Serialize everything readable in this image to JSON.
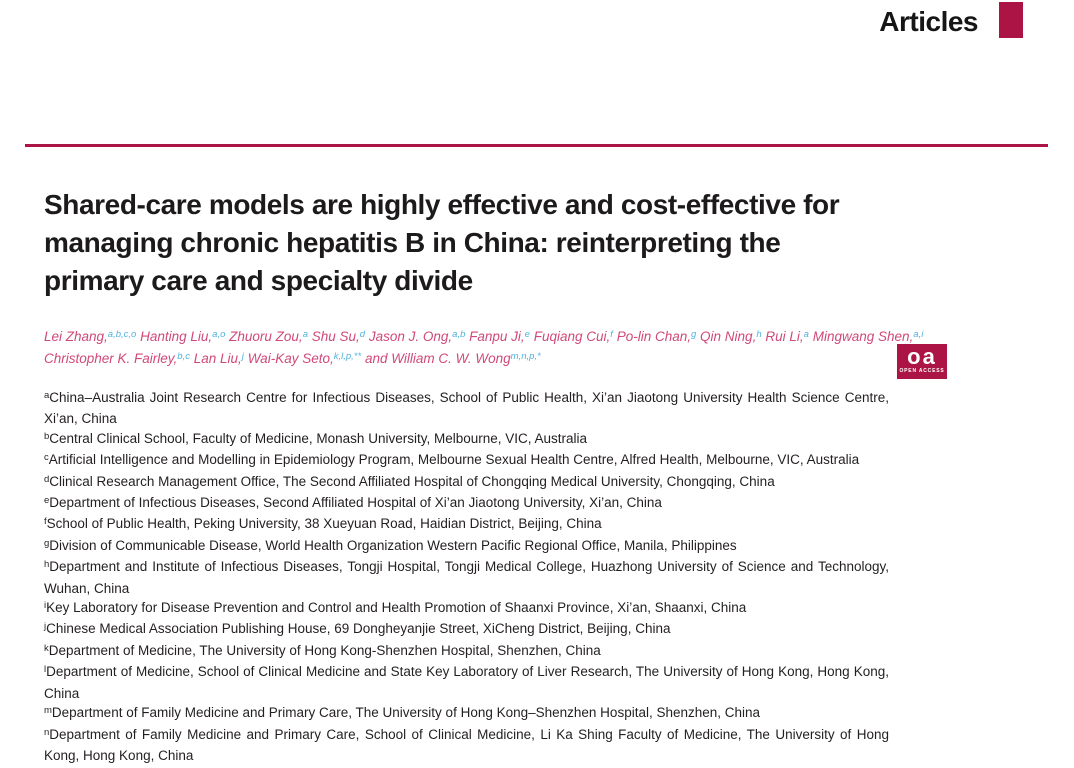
{
  "header": {
    "section_label": "Articles"
  },
  "colors": {
    "crimson": "#AC1445",
    "author_pink": "#D0497A",
    "superscript_blue": "#4FB3E0",
    "text_black": "#231F20"
  },
  "title": {
    "lines": [
      "Shared-care models are highly effective and cost-effective for",
      "managing chronic hepatitis B in China: reinterpreting the",
      "primary care and specialty divide"
    ]
  },
  "authors": {
    "line1": [
      {
        "name": "Lei Zhang,",
        "sup": "a,b,c,o"
      },
      {
        "name": "Hanting Liu,",
        "sup": "a,o"
      },
      {
        "name": "Zhuoru Zou,",
        "sup": "a"
      },
      {
        "name": "Shu Su,",
        "sup": "d"
      },
      {
        "name": "Jason J. Ong,",
        "sup": "a,b"
      },
      {
        "name": "Fanpu Ji,",
        "sup": "e"
      },
      {
        "name": "Fuqiang Cui,",
        "sup": "f"
      },
      {
        "name": "Po-lin Chan,",
        "sup": "g"
      },
      {
        "name": "Qin Ning,",
        "sup": "h"
      },
      {
        "name": "Rui Li,",
        "sup": "a"
      },
      {
        "name": "Mingwang Shen,",
        "sup": "a,i"
      }
    ],
    "line2": [
      {
        "name": "Christopher K. Fairley,",
        "sup": "b,c"
      },
      {
        "name": "Lan Liu,",
        "sup": "j"
      },
      {
        "name": "Wai-Kay Seto,",
        "sup": "k,l,p,**"
      },
      {
        "name": "and William C. W. Wong",
        "sup": "m,n,p,*"
      }
    ]
  },
  "open_access": {
    "abbr": "oa",
    "label": "OPEN ACCESS"
  },
  "affiliations": [
    {
      "letter": "a",
      "text": "China–Australia Joint Research Centre for Infectious Diseases, School of Public Health, Xi’an Jiaotong University Health Science Centre, Xi’an, China"
    },
    {
      "letter": "b",
      "text": "Central Clinical School, Faculty of Medicine, Monash University, Melbourne, VIC, Australia"
    },
    {
      "letter": "c",
      "text": "Artificial Intelligence and Modelling in Epidemiology Program, Melbourne Sexual Health Centre, Alfred Health, Melbourne, VIC, Australia"
    },
    {
      "letter": "d",
      "text": "Clinical Research Management Office, The Second Affiliated Hospital of Chongqing Medical University, Chongqing, China"
    },
    {
      "letter": "e",
      "text": "Department of Infectious Diseases, Second Affiliated Hospital of Xi’an Jiaotong University, Xi’an, China"
    },
    {
      "letter": "f",
      "text": "School of Public Health, Peking University, 38 Xueyuan Road, Haidian District, Beijing, China"
    },
    {
      "letter": "g",
      "text": "Division of Communicable Disease, World Health Organization Western Pacific Regional Office, Manila, Philippines"
    },
    {
      "letter": "h",
      "text": "Department and Institute of Infectious Diseases, Tongji Hospital, Tongji Medical College, Huazhong University of Science and Technology, Wuhan, China"
    },
    {
      "letter": "i",
      "text": "Key Laboratory for Disease Prevention and Control and Health Promotion of Shaanxi Province, Xi’an, Shaanxi, China"
    },
    {
      "letter": "j",
      "text": "Chinese Medical Association Publishing House, 69 Dongheyanjie Street, XiCheng District, Beijing, China"
    },
    {
      "letter": "k",
      "text": "Department of Medicine, The University of Hong Kong-Shenzhen Hospital, Shenzhen, China"
    },
    {
      "letter": "l",
      "text": "Department of Medicine, School of Clinical Medicine and State Key Laboratory of Liver Research, The University of Hong Kong, Hong Kong, China"
    },
    {
      "letter": "m",
      "text": "Department of Family Medicine and Primary Care, The University of Hong Kong–Shenzhen Hospital, Shenzhen, China"
    },
    {
      "letter": "n",
      "text": "Department of Family Medicine and Primary Care, School of Clinical Medicine, Li Ka Shing Faculty of Medicine, The University of Hong Kong, Hong Kong, China"
    }
  ]
}
